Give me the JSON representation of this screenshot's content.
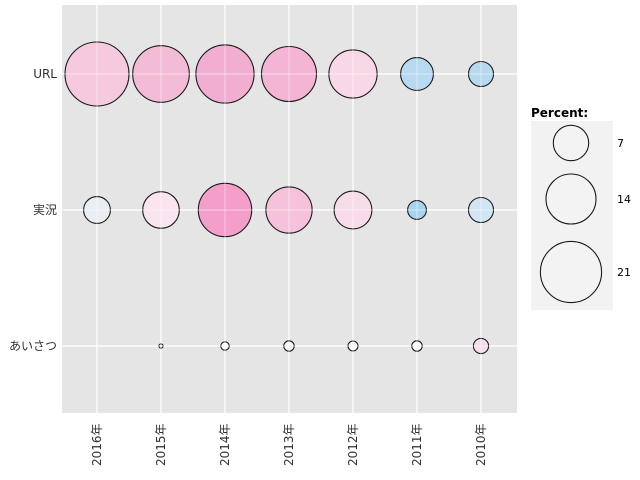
{
  "chart_data": {
    "type": "bubble",
    "title": "",
    "rows": [
      "URL",
      "実況",
      "あいさつ"
    ],
    "columns": [
      "2016年",
      "2015年",
      "2014年",
      "2013年",
      "2012年",
      "2011年",
      "2010年"
    ],
    "unit": "percent",
    "series": [
      {
        "name": "URL",
        "values": [
          23,
          18,
          19,
          17,
          13,
          6,
          3.5
        ],
        "fills": [
          "#f7c9de",
          "#f4bbd7",
          "#f2aed1",
          "#f4b5d4",
          "#f8d8e7",
          "#b8daf0",
          "#b6d9ef"
        ]
      },
      {
        "name": "実況",
        "values": [
          4,
          7.5,
          16,
          12,
          8,
          2,
          3.5
        ],
        "fills": [
          "#e9eef2",
          "#fae4ef",
          "#f49fc9",
          "#f6c2db",
          "#f9dcea",
          "#a9d3ed",
          "#d2e5f3"
        ]
      },
      {
        "name": "あいさつ",
        "values": [
          null,
          0.1,
          0.4,
          0.6,
          0.55,
          0.6,
          1.3
        ],
        "fills": [
          null,
          "#fdfdfd",
          "#fcfcfc",
          "#faf6f8",
          "#fbfafa",
          "#fcfcfd",
          "#f7dce9"
        ]
      }
    ],
    "legend": {
      "title": "Percent:",
      "sizes": [
        7,
        14,
        21
      ],
      "labels": [
        "7",
        "14",
        "21"
      ],
      "position": "right"
    },
    "size_scale": {
      "radius_px_per_sqrt_unit": 6.68
    },
    "layout_hints": {
      "grid": "major-only",
      "x_label_rotation": -90
    },
    "colors": {
      "panel_bg": "#e5e5e5",
      "legend_bg": "#f2f2f2",
      "legend_key_fill": "#f3f3f3",
      "grid": "#ffffff",
      "bubble_stroke": "#1a1a1a",
      "axis_text": "#303030",
      "legend_text": "#000000"
    }
  }
}
